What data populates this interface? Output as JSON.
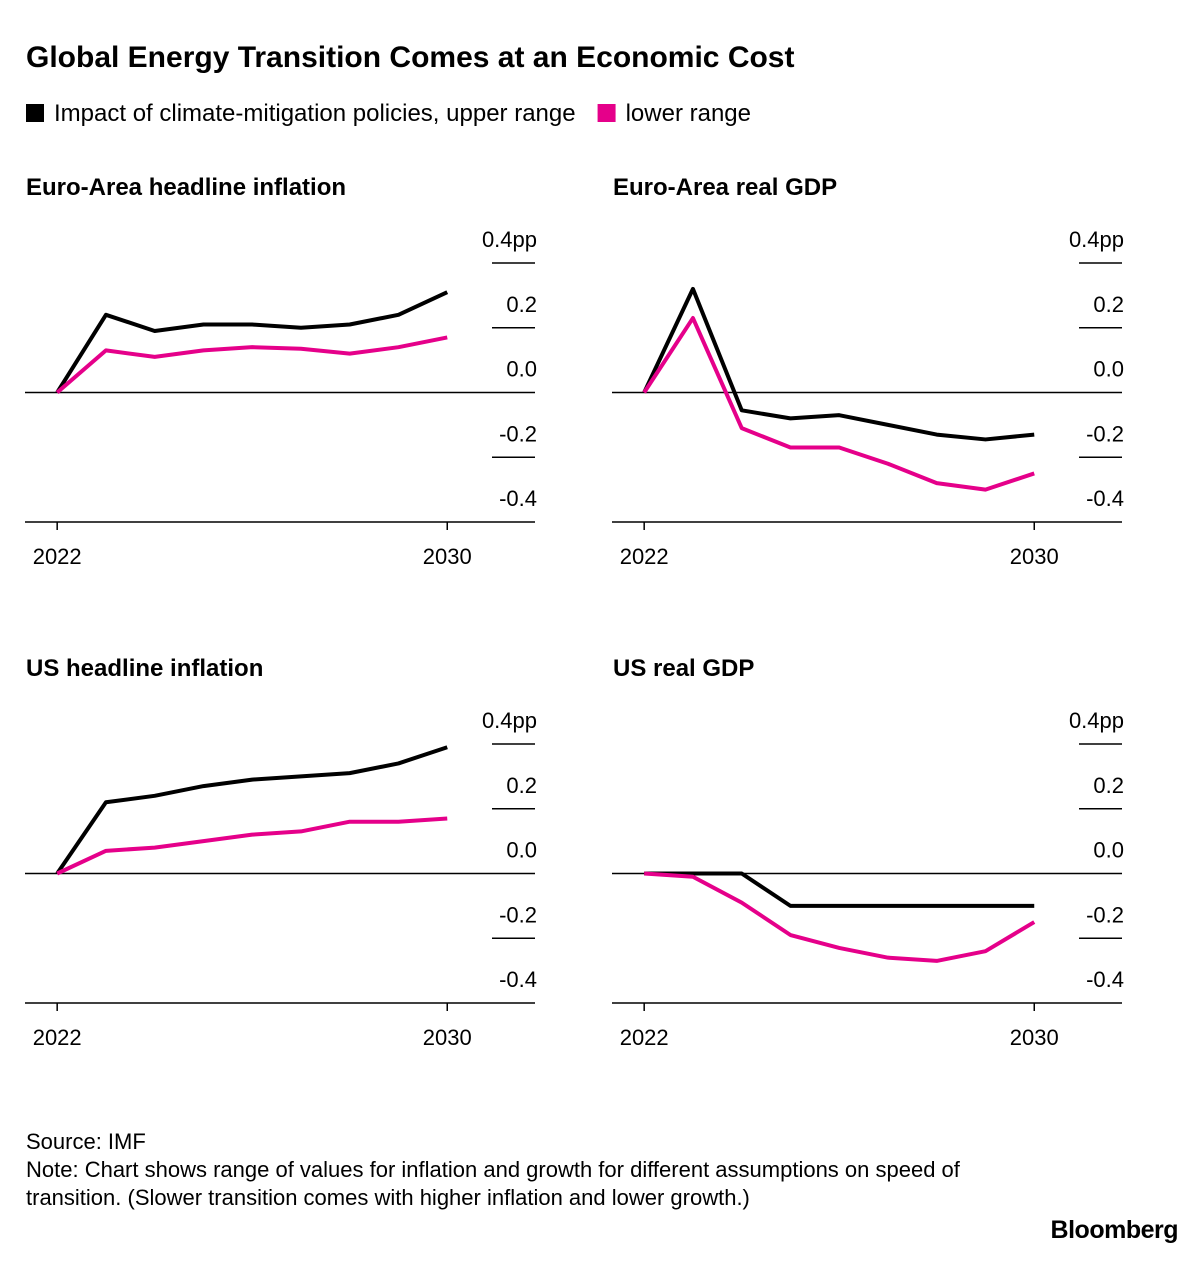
{
  "title": "Global Energy Transition Comes at an Economic Cost",
  "chart_data": [
    {
      "type": "line",
      "title": "Euro-Area headline inflation",
      "x": [
        2022,
        2023,
        2024,
        2025,
        2026,
        2027,
        2028,
        2029,
        2030
      ],
      "series": [
        {
          "name": "Impact of climate-mitigation policies, upper range",
          "color": "#000000",
          "values": [
            0,
            0.24,
            0.19,
            0.21,
            0.21,
            0.2,
            0.21,
            0.24,
            0.31
          ]
        },
        {
          "name": "lower range",
          "color": "#e5008a",
          "values": [
            0,
            0.13,
            0.11,
            0.13,
            0.14,
            0.135,
            0.12,
            0.14,
            0.17
          ]
        }
      ],
      "xlim": [
        2021.34,
        2031.8
      ],
      "xticks": [
        2022,
        2030
      ],
      "ylim": [
        -0.4,
        0.4
      ],
      "yticks": [
        {
          "value": 0.4,
          "label": "0.4pp"
        },
        0.2,
        {
          "value": 0,
          "label": "0.0"
        },
        -0.2,
        -0.4
      ]
    },
    {
      "type": "line",
      "title": "Euro-Area real GDP",
      "x": [
        2022,
        2023,
        2024,
        2025,
        2026,
        2027,
        2028,
        2029,
        2030
      ],
      "series": [
        {
          "color": "#000000",
          "values": [
            0,
            0.32,
            -0.055,
            -0.08,
            -0.07,
            -0.1,
            -0.13,
            -0.145,
            -0.13
          ]
        },
        {
          "color": "#e5008a",
          "values": [
            0,
            0.23,
            -0.11,
            -0.17,
            -0.17,
            -0.22,
            -0.28,
            -0.3,
            -0.25
          ]
        }
      ],
      "xlim": [
        2021.34,
        2031.8
      ],
      "xticks": [
        2022,
        2030
      ],
      "ylim": [
        -0.4,
        0.4
      ],
      "yticks": [
        {
          "value": 0.4,
          "label": "0.4pp"
        },
        0.2,
        {
          "value": 0,
          "label": "0.0"
        },
        -0.2,
        -0.4
      ]
    },
    {
      "type": "line",
      "title": "US headline inflation",
      "x": [
        2022,
        2023,
        2024,
        2025,
        2026,
        2027,
        2028,
        2029,
        2030
      ],
      "series": [
        {
          "color": "#000000",
          "values": [
            0,
            0.22,
            0.24,
            0.27,
            0.29,
            0.3,
            0.31,
            0.34,
            0.39
          ]
        },
        {
          "color": "#e5008a",
          "values": [
            0,
            0.07,
            0.08,
            0.1,
            0.12,
            0.13,
            0.16,
            0.16,
            0.17
          ]
        }
      ],
      "xlim": [
        2021.34,
        2031.8
      ],
      "xticks": [
        2022,
        2030
      ],
      "ylim": [
        -0.4,
        0.4
      ],
      "yticks": [
        {
          "value": 0.4,
          "label": "0.4pp"
        },
        0.2,
        {
          "value": 0,
          "label": "0.0"
        },
        -0.2,
        -0.4
      ]
    },
    {
      "type": "line",
      "title": "US real GDP",
      "x": [
        2022,
        2023,
        2024,
        2025,
        2026,
        2027,
        2028,
        2029,
        2030
      ],
      "series": [
        {
          "color": "#000000",
          "values": [
            0,
            0,
            0,
            -0.1,
            -0.1,
            -0.1,
            -0.1,
            -0.1,
            -0.1
          ]
        },
        {
          "color": "#e5008a",
          "values": [
            0,
            -0.01,
            -0.09,
            -0.19,
            -0.23,
            -0.26,
            -0.27,
            -0.24,
            -0.15
          ]
        }
      ],
      "xlim": [
        2021.34,
        2031.8
      ],
      "xticks": [
        2022,
        2030
      ],
      "ylim": [
        -0.4,
        0.4
      ],
      "yticks": [
        {
          "value": 0.4,
          "label": "0.4pp"
        },
        0.2,
        {
          "value": 0,
          "label": "0.0"
        },
        -0.2,
        -0.4
      ]
    }
  ],
  "source": "Source: IMF",
  "note": "Note: Chart shows range of values for inflation and growth for different assumptions on speed of transition. (Slower transition comes with higher inflation and lower growth.)",
  "brand": "Bloomberg"
}
